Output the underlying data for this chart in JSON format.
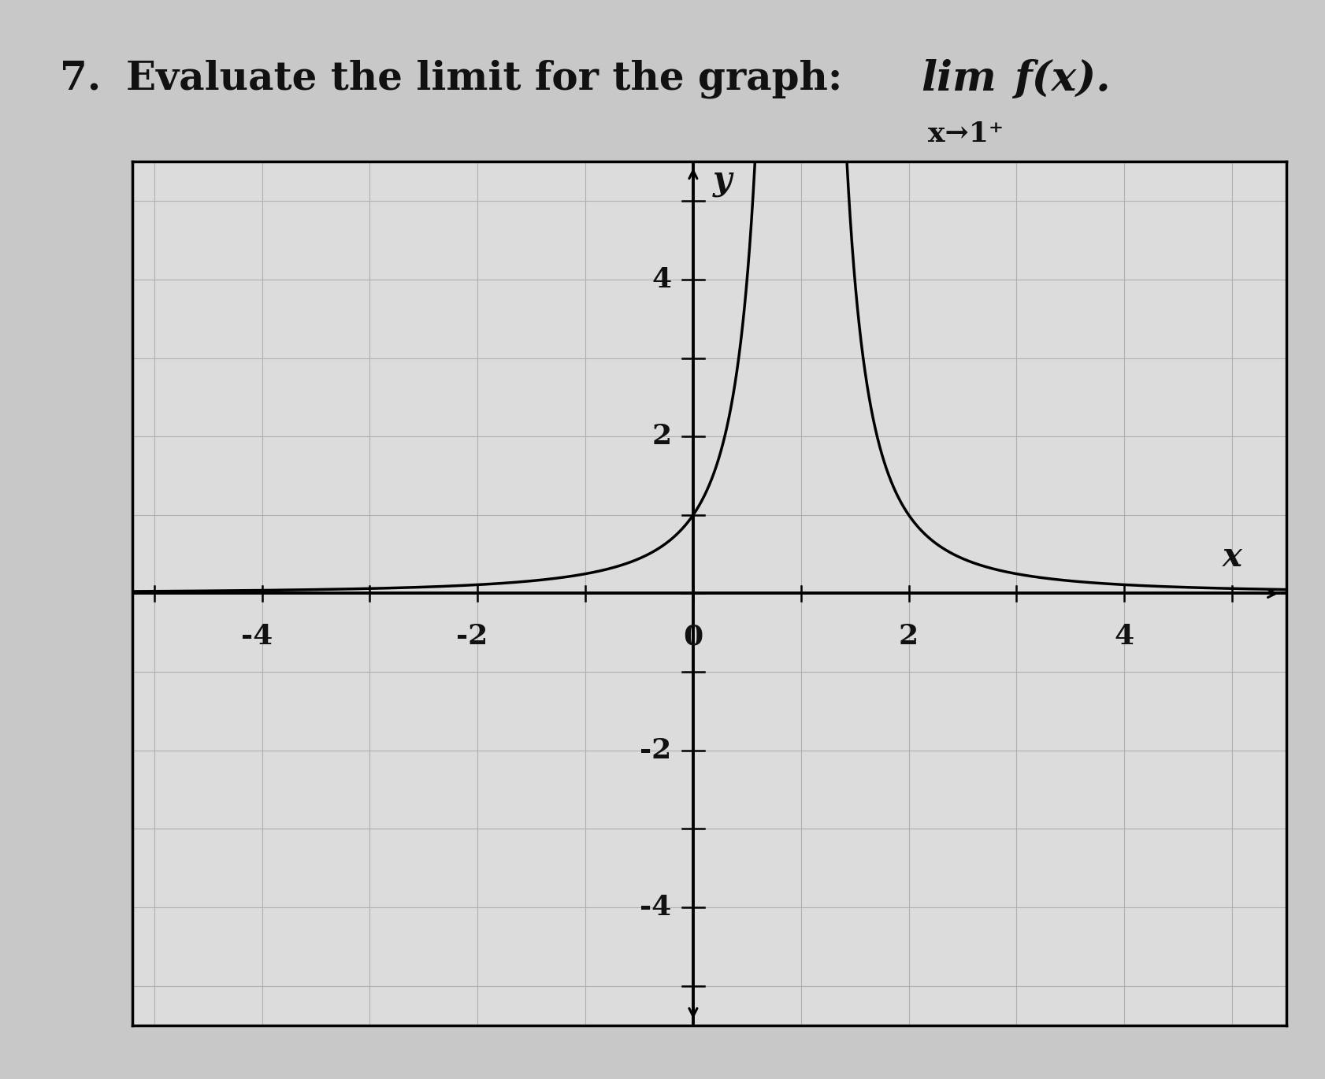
{
  "title_number": "7.",
  "title_text": "Evaluate the limit for the graph:  lim ",
  "limit_func": "f(x).",
  "limit_subscript": "x→1⁺",
  "bg_color": "#c8c8c8",
  "plot_bg_color": "#dcdcdc",
  "curve_color": "#000000",
  "axis_color": "#000000",
  "grid_color": "#b0b0b0",
  "text_color": "#111111",
  "xlim": [
    -5.2,
    5.5
  ],
  "ylim": [
    -5.5,
    5.5
  ],
  "xtick_vals": [
    -4,
    -2,
    0,
    2,
    4
  ],
  "ytick_vals": [
    -4,
    -2,
    2,
    4
  ],
  "xlabel": "x",
  "ylabel": "y",
  "asymptote_x": 1.0,
  "title_fontsize": 36,
  "lim_fontsize": 38,
  "subscript_fontsize": 26,
  "axis_label_fontsize": 30,
  "tick_fontsize": 26
}
